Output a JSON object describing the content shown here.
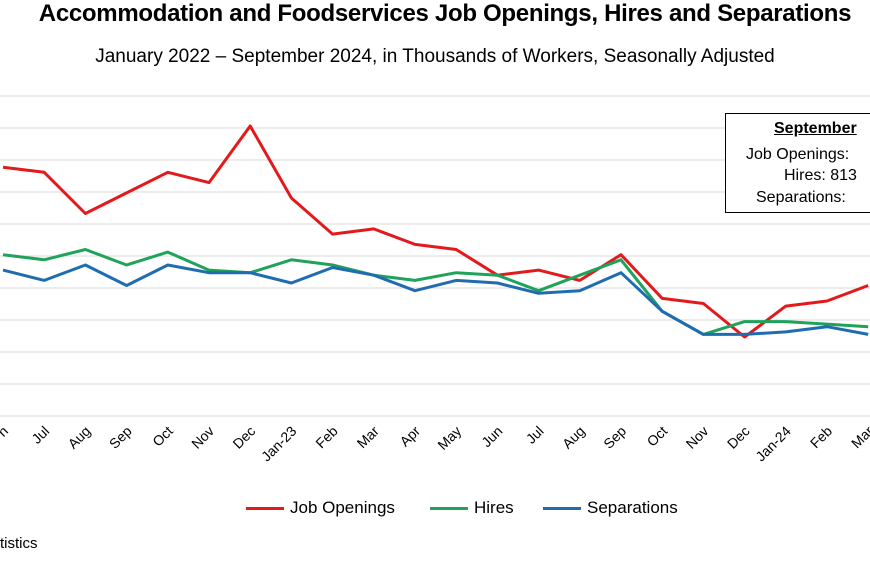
{
  "title": "Accommodation and Foodservices Job Openings, Hires and Separations",
  "subtitle": "January 2022 – September 2024, in Thousands of Workers, Seasonally Adjusted",
  "annotation": {
    "heading": "September",
    "lines": [
      "Job Openings:",
      "Hires: 813",
      "Separations:"
    ]
  },
  "source": "tistics",
  "chart_data": {
    "type": "line",
    "categories": [
      "Jun",
      "Jul",
      "Aug",
      "Sep",
      "Oct",
      "Nov",
      "Dec",
      "Jan-23",
      "Feb",
      "Mar",
      "Apr",
      "May",
      "Jun",
      "Jul",
      "Aug",
      "Sep",
      "Oct",
      "Nov",
      "Dec",
      "Jan-24",
      "Feb",
      "Mar"
    ],
    "category_labels": [
      "n",
      "Jul",
      "Aug",
      "Sep",
      "Oct",
      "Nov",
      "Dec",
      "Jan-23",
      "Feb",
      "Mar",
      "Apr",
      "May",
      "Jun",
      "Jul",
      "Aug",
      "Sep",
      "Oct",
      "Nov",
      "Dec",
      "Jan-24",
      "Feb",
      "Mar"
    ],
    "ylim": [
      0,
      1300
    ],
    "grid": true,
    "legend_position": "bottom",
    "series": [
      {
        "name": "Job Openings",
        "color": "#e31a1c",
        "values": [
          1270,
          1260,
          1180,
          1220,
          1260,
          1240,
          1350,
          1210,
          1140,
          1150,
          1120,
          1110,
          1060,
          1070,
          1050,
          1100,
          1015,
          1005,
          940,
          1000,
          1010,
          1040
        ]
      },
      {
        "name": "Hires",
        "color": "#1fa35b",
        "values": [
          1100,
          1090,
          1110,
          1080,
          1105,
          1070,
          1065,
          1090,
          1080,
          1060,
          1050,
          1065,
          1060,
          1030,
          1060,
          1090,
          990,
          945,
          970,
          970,
          965,
          960
        ]
      },
      {
        "name": "Separations",
        "color": "#1f6cb0",
        "values": [
          1070,
          1050,
          1080,
          1040,
          1080,
          1065,
          1065,
          1045,
          1075,
          1060,
          1030,
          1050,
          1045,
          1025,
          1030,
          1065,
          990,
          945,
          945,
          950,
          960,
          945
        ]
      }
    ]
  }
}
